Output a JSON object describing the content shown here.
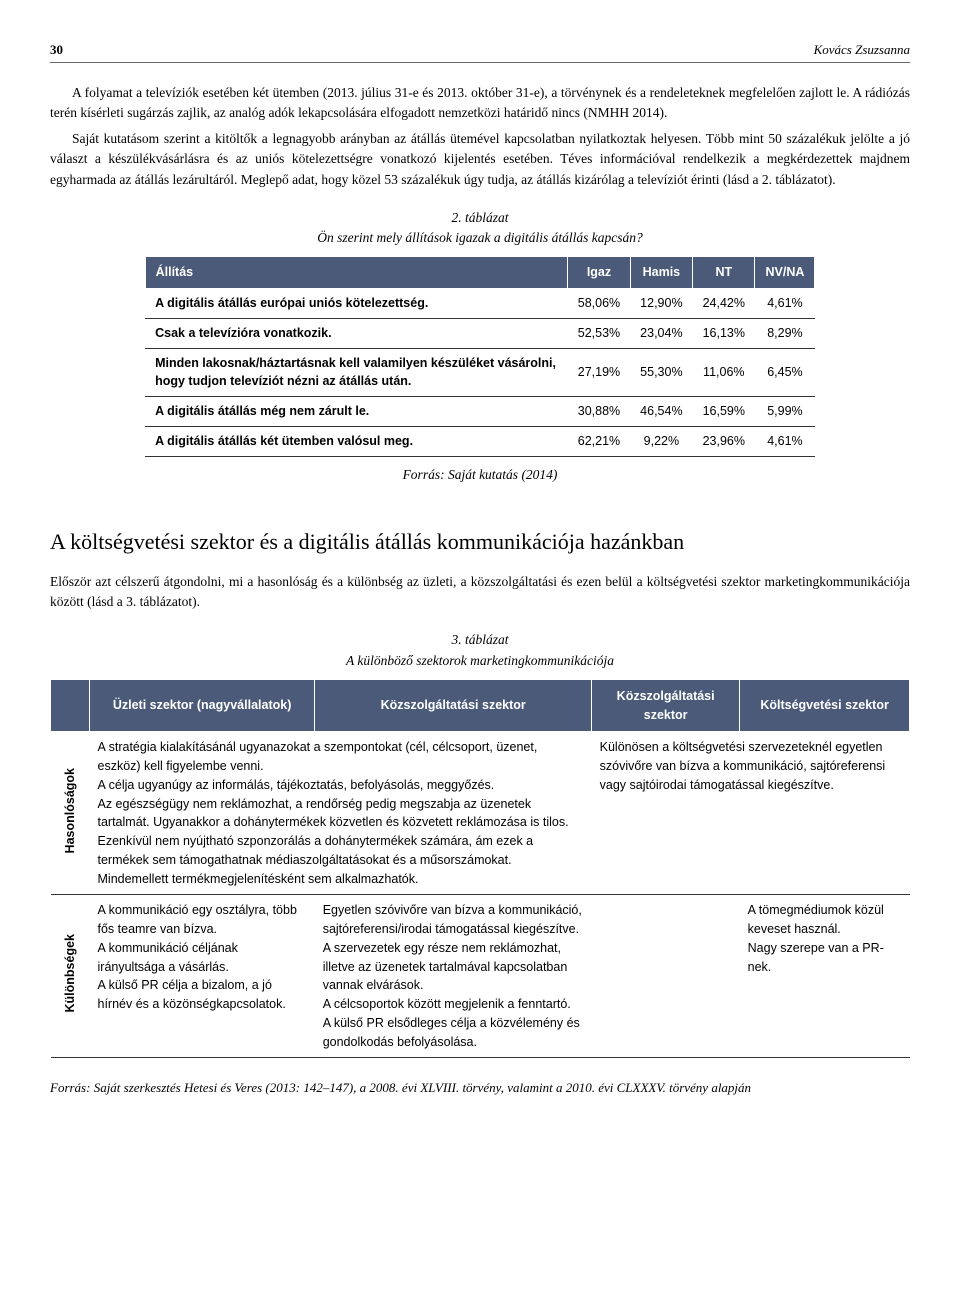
{
  "header": {
    "page_number": "30",
    "author": "Kovács Zsuzsanna"
  },
  "body": {
    "p1": "A folyamat a televíziók esetében két ütemben (2013. július 31-e és 2013. október 31-e), a törvénynek és a rendeleteknek megfelelően zajlott le. A rádiózás terén kísérleti sugárzás zajlik, az analóg adók lekapcsolására elfogadott nemzetközi határidő nincs (NMHH 2014).",
    "p2": "Saját kutatásom szerint a kitöltők a legnagyobb arányban az átállás ütemével kapcsolatban nyilatkoztak helyesen. Több mint 50 százalékuk jelölte a jó választ a készülékvásárlásra és az uniós kötelezettségre vonatkozó kijelentés esetében. Téves információval rendelkezik a megkérdezettek majdnem egyharmada az átállás lezárultáról. Meglepő adat, hogy közel 53 százalékuk úgy tudja, az átállás kizárólag a televíziót érinti (lásd a 2. táblázatot).",
    "p3": "Először azt célszerű átgondolni, mi a hasonlóság és a különbség az üzleti, a közszolgáltatási és ezen belül a költségvetési szektor marketingkommunikációja között (lásd a 3. táblázatot)."
  },
  "table2": {
    "caption_num": "2. táblázat",
    "caption_text": "Ön szerint mely állítások igazak a digitális átállás kapcsán?",
    "header_bg": "#4a5a78",
    "header_color": "#ffffff",
    "columns": [
      "Állítás",
      "Igaz",
      "Hamis",
      "NT",
      "NV/NA"
    ],
    "rows": [
      [
        "A digitális átállás európai uniós kötelezettség.",
        "58,06%",
        "12,90%",
        "24,42%",
        "4,61%"
      ],
      [
        "Csak a televízióra vonatkozik.",
        "52,53%",
        "23,04%",
        "16,13%",
        "8,29%"
      ],
      [
        "Minden lakosnak/háztartásnak kell valamilyen készüléket vásárolni, hogy tudjon televíziót nézni az átállás után.",
        "27,19%",
        "55,30%",
        "11,06%",
        "6,45%"
      ],
      [
        "A digitális átállás még nem zárult le.",
        "30,88%",
        "46,54%",
        "16,59%",
        "5,99%"
      ],
      [
        "A digitális átállás két ütemben valósul meg.",
        "62,21%",
        "9,22%",
        "23,96%",
        "4,61%"
      ]
    ],
    "source": "Forrás: Saját kutatás (2014)"
  },
  "section_heading": "A költségvetési szektor és a digitális átállás kommunikációja hazánkban",
  "table3": {
    "caption_num": "3. táblázat",
    "caption_text": "A különböző szektorok marketingkommunikációja",
    "header_bg": "#4a5a78",
    "columns": [
      "",
      "Üzleti szektor (nagyvállalatok)",
      "Közszolgáltatási szektor",
      "Közszolgáltatási szektor",
      "Költségvetési szektor"
    ],
    "row1_label": "Hasonlóságok",
    "row1_c1": "A stratégia kialakításánál ugyanazokat a szempontokat (cél, célcsoport, üzenet, eszköz) kell figyelembe venni.\nA célja ugyanúgy az informálás, tájékoztatás, befolyásolás, meggyőzés.\nAz egészségügy nem reklámozhat, a rendőrség pedig megszabja az üzenetek tartalmát. Ugyanakkor a dohánytermékek közvetlen és közvetett reklámozása is tilos. Ezenkívül nem nyújtható szponzorálás a dohánytermékek számára, ám ezek a termékek sem támogathatnak médiaszolgáltatásokat és a műsorszámokat.\nMindemellett termékmegjelenítésként sem alkalmazhatók.",
    "row1_c2": "Különösen a költségvetési szervezeteknél egyetlen szóvivőre van bízva a kommunikáció, sajtóreferensi vagy sajtóirodai támogatással kiegészítve.",
    "row2_label": "Különbségek",
    "row2_c1": "A kommunikáció egy osztályra, több fős teamre van bízva.\nA kommunikáció céljának irányultsága a vásárlás.\nA külső PR célja a bizalom, a jó hírnév és a közönségkapcsolatok.",
    "row2_c2": "Egyetlen szóvivőre van bízva a kommunikáció, sajtóreferensi/irodai támogatással kiegészítve.\nA szervezetek egy része nem reklámozhat, illetve az üzenetek tartalmával kapcsolatban vannak elvárások.\nA célcsoportok között megjelenik a fenntartó.\nA külső PR elsődleges célja a közvélemény és gondolkodás befolyásolása.",
    "row2_c3": "",
    "row2_c4": "A tömegmédiumok közül keveset használ.\nNagy szerepe van a PR-nek.",
    "source": "Forrás: Saját szerkesztés Hetesi és Veres (2013: 142–147), a 2008. évi XLVIII. törvény, valamint a 2010. évi CLXXXV. törvény alapján"
  }
}
